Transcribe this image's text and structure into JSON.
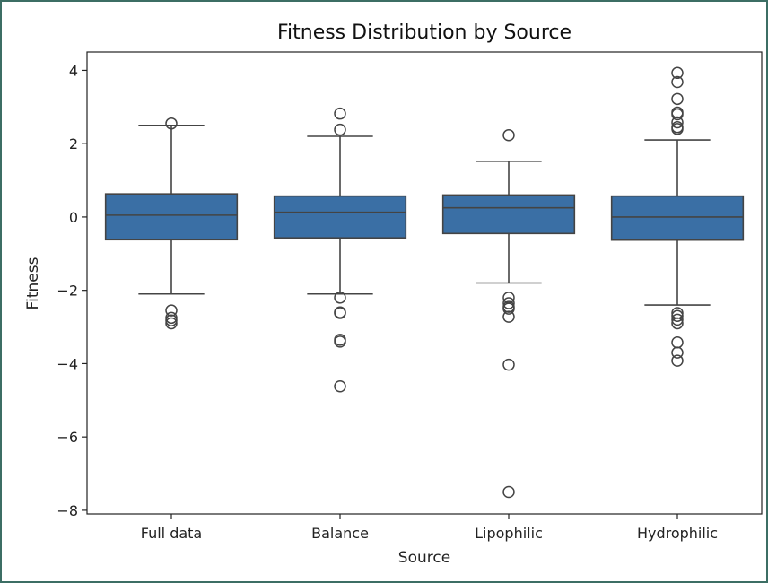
{
  "chart_data": {
    "type": "box",
    "title": "Fitness Distribution by Source",
    "xlabel": "Source",
    "ylabel": "Fitness",
    "ylim": [
      -8.1,
      4.5
    ],
    "yticks": [
      4,
      2,
      0,
      -2,
      -4,
      -6,
      -8
    ],
    "ytick_labels": [
      "4",
      "2",
      "0",
      "−2",
      "−4",
      "−6",
      "−8"
    ],
    "categories": [
      "Full data",
      "Balance",
      "Lipophilic",
      "Hydrophilic"
    ],
    "box_color": "#3a6fa5",
    "series": [
      {
        "category": "Full data",
        "q1": -0.62,
        "median": 0.05,
        "q3": 0.63,
        "whisker_low": -2.1,
        "whisker_high": 2.5,
        "outliers": [
          2.55,
          -2.55,
          -2.75,
          -2.82,
          -2.9
        ]
      },
      {
        "category": "Balance",
        "q1": -0.57,
        "median": 0.13,
        "q3": 0.57,
        "whisker_low": -2.1,
        "whisker_high": 2.2,
        "outliers": [
          2.82,
          2.38,
          -2.2,
          -2.6,
          -2.62,
          -3.35,
          -3.4,
          -4.62
        ]
      },
      {
        "category": "Lipophilic",
        "q1": -0.45,
        "median": 0.25,
        "q3": 0.6,
        "whisker_low": -1.8,
        "whisker_high": 1.52,
        "outliers": [
          2.23,
          -2.2,
          -2.35,
          -2.45,
          -2.5,
          -2.72,
          -4.03,
          -7.5
        ]
      },
      {
        "category": "Hydrophilic",
        "q1": -0.63,
        "median": 0.0,
        "q3": 0.57,
        "whisker_low": -2.4,
        "whisker_high": 2.1,
        "outliers": [
          3.93,
          3.68,
          3.22,
          2.85,
          2.8,
          2.58,
          2.45,
          2.4,
          -2.62,
          -2.7,
          -2.8,
          -2.9,
          -3.42,
          -3.7,
          -3.92
        ]
      }
    ]
  }
}
